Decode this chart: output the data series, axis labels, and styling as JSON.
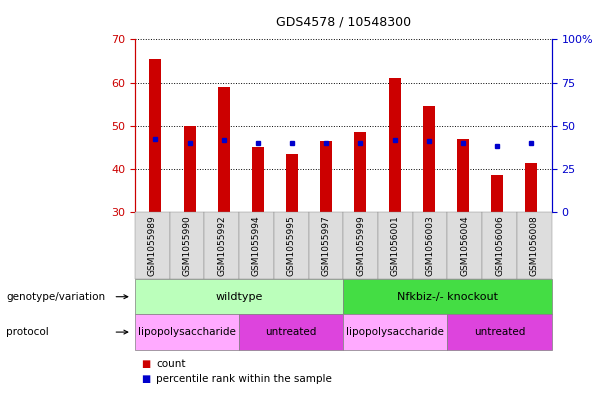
{
  "title": "GDS4578 / 10548300",
  "samples": [
    "GSM1055989",
    "GSM1055990",
    "GSM1055992",
    "GSM1055994",
    "GSM1055995",
    "GSM1055997",
    "GSM1055999",
    "GSM1056001",
    "GSM1056003",
    "GSM1056004",
    "GSM1056006",
    "GSM1056008"
  ],
  "counts": [
    65.5,
    50.0,
    59.0,
    45.0,
    43.5,
    46.5,
    48.5,
    61.0,
    54.5,
    47.0,
    38.5,
    41.5
  ],
  "percentile_ranks": [
    42.5,
    40.0,
    41.5,
    40.0,
    40.0,
    40.0,
    40.0,
    41.5,
    41.0,
    40.0,
    38.5,
    40.0
  ],
  "bar_bottom": 30,
  "ylim_left": [
    30,
    70
  ],
  "ylim_right": [
    0,
    100
  ],
  "yticks_left": [
    30,
    40,
    50,
    60,
    70
  ],
  "yticks_right": [
    0,
    25,
    50,
    75,
    100
  ],
  "ytick_labels_right": [
    "0",
    "25",
    "50",
    "75",
    "100%"
  ],
  "bar_color": "#cc0000",
  "dot_color": "#0000cc",
  "bar_width": 0.35,
  "genotype_groups": [
    {
      "label": "wildtype",
      "start": 0,
      "end": 6,
      "color": "#bbffbb"
    },
    {
      "label": "Nfkbiz-/- knockout",
      "start": 6,
      "end": 12,
      "color": "#44dd44"
    }
  ],
  "protocol_groups": [
    {
      "label": "lipopolysaccharide",
      "start": 0,
      "end": 3,
      "color": "#ffaaff"
    },
    {
      "label": "untreated",
      "start": 3,
      "end": 6,
      "color": "#dd44dd"
    },
    {
      "label": "lipopolysaccharide",
      "start": 6,
      "end": 9,
      "color": "#ffaaff"
    },
    {
      "label": "untreated",
      "start": 9,
      "end": 12,
      "color": "#dd44dd"
    }
  ],
  "row_labels": [
    "genotype/variation",
    "protocol"
  ],
  "legend_items": [
    {
      "label": "count",
      "color": "#cc0000"
    },
    {
      "label": "percentile rank within the sample",
      "color": "#0000cc"
    }
  ],
  "spine_color": "#cc0000",
  "right_axis_color": "#0000cc",
  "tick_bg_color": "#dddddd"
}
